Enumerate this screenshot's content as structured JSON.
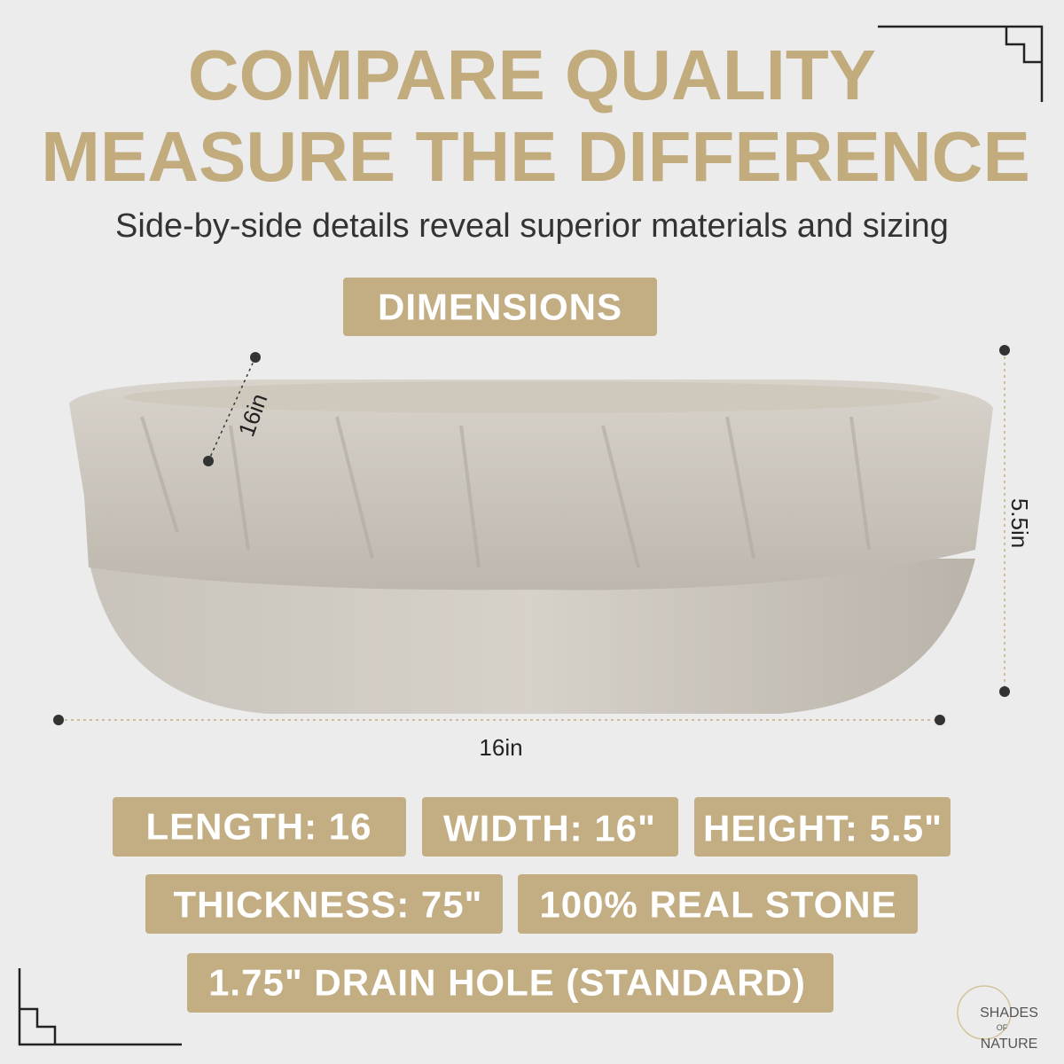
{
  "header": {
    "title_lines": [
      "COMPARE QUALITY",
      "MEASURE THE DIFFERENCE"
    ],
    "subtitle": "Side-by-side details reveal superior materials and sizing"
  },
  "section_label": "DIMENSIONS",
  "dimension_labels": {
    "depth": "16in",
    "height": "5.5in",
    "length": "16in"
  },
  "specs": [
    "LENGTH: 16",
    "WIDTH: 16\"",
    "HEIGHT: 5.5\"",
    "THICKNESS: 75\"",
    "100% REAL STONE",
    "1.75\" DRAIN HOLE (STANDARD)"
  ],
  "logo": {
    "lines": [
      "SHADES",
      "OF",
      "NATURE"
    ]
  }
}
